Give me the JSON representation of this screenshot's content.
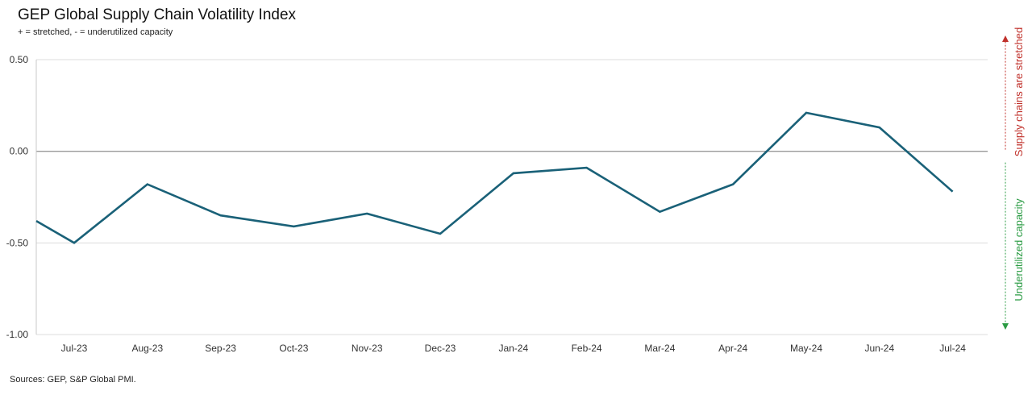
{
  "chart_data": {
    "type": "line",
    "title": "GEP Global Supply Chain Volatility Index",
    "subtitle": "+ = stretched, - = underutilized capacity",
    "categories": [
      "Jul-23",
      "Aug-23",
      "Sep-23",
      "Oct-23",
      "Nov-23",
      "Dec-23",
      "Jan-24",
      "Feb-24",
      "Mar-24",
      "Apr-24",
      "May-24",
      "Jun-24",
      "Jul-24"
    ],
    "start_value": -0.38,
    "series": [
      {
        "values": [
          -0.5,
          -0.18,
          -0.35,
          -0.41,
          -0.34,
          -0.45,
          -0.12,
          -0.09,
          -0.33,
          -0.18,
          0.21,
          0.13,
          -0.22
        ]
      }
    ],
    "ylim": [
      -1.0,
      0.5
    ],
    "yticks": [
      "0.50",
      "0.00",
      "-0.50",
      "-1.00"
    ],
    "ytick_values": [
      0.5,
      0.0,
      -0.5,
      -1.0
    ],
    "grid": true,
    "line_color": "#1a6178",
    "annotations": {
      "upper": "Supply chains are stretched",
      "upper_color": "#c0312b",
      "lower": "Underutilized capacity",
      "lower_color": "#2a9b43"
    }
  },
  "source": "Sources: GEP, S&P Global PMI."
}
